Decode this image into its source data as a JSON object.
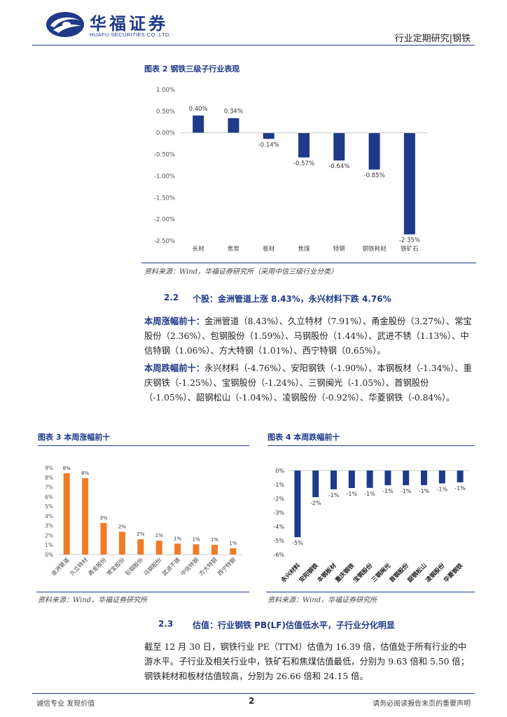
{
  "header": {
    "brand_cn": "华福证券",
    "brand_en": "HUAFU SECURITIES CO.,LTD.",
    "report_type": "行业定期研究|钢铁",
    "brand_color": "#1f3a8a"
  },
  "figure2": {
    "title": "图表 2 钢铁三级子行业表现",
    "source": "资料来源：Wind，华福证券研究所（采用中信三级行业分类）",
    "chart_data": {
      "type": "bar",
      "categories": [
        "长材",
        "焦炭",
        "板材",
        "焦煤",
        "特钢",
        "钢铁耗材",
        "铁矿石"
      ],
      "values": [
        0.4,
        0.34,
        -0.14,
        -0.57,
        -0.64,
        -0.85,
        -2.35
      ],
      "data_labels": [
        "0.40%",
        "0.34%",
        "-0.14%",
        "-0.57%",
        "-0.64%",
        "-0.85%",
        "-2.35%"
      ],
      "y_ticks": [
        "1.00%",
        "0.50%",
        "0.00%",
        "-0.50%",
        "-1.00%",
        "-1.50%",
        "-2.00%",
        "-2.50%"
      ],
      "ylim": [
        -2.5,
        1.0
      ],
      "bar_color": "#1f3a8a"
    }
  },
  "section22": {
    "number": "2.2",
    "title": "个股：金洲管道上涨 8.43%，永兴材料下跌 4.76%",
    "up_lead": "本周涨幅前十：",
    "up_text": "金洲管道（8.43%）、久立特材（7.91%）、甬金股份（3.27%）、常宝股份（2.36%）、包钢股份（1.59%）、马钢股份（1.44%）、武进不锈（1.13%）、中信特钢（1.06%）、方大特钢（1.01%）、西宁特钢（0.65%）。",
    "down_lead": "本周跌幅前十：",
    "down_text": "永兴材料（-4.76%）、安阳钢铁（-1.90%）、本钢板材（-1.34%）、重庆钢铁（-1.25%）、宝钢股份（-1.24%）、三钢闽光（-1.05%）、首钢股份（-1.05%）、韶钢松山（-1.04%）、凌钢股份（-0.92%）、华菱钢铁（-0.84%）。"
  },
  "figure3": {
    "title": "图表 3 本周涨幅前十",
    "source": "资料来源：Wind，华福证券研究所",
    "chart_data": {
      "type": "bar",
      "categories": [
        "金洲管道",
        "久立特材",
        "甬金股份",
        "常宝股份",
        "包钢股份",
        "马钢股份",
        "武进不锈",
        "中信特钢",
        "方大特钢",
        "西宁特钢"
      ],
      "values": [
        8.43,
        7.91,
        3.27,
        2.36,
        1.59,
        1.44,
        1.13,
        1.06,
        1.01,
        0.65
      ],
      "data_labels": [
        "8%",
        "8%",
        "3%",
        "2%",
        "2%",
        "1%",
        "1%",
        "1%",
        "1%",
        "1%"
      ],
      "y_ticks": [
        "9%",
        "8%",
        "7%",
        "6%",
        "5%",
        "4%",
        "3%",
        "2%",
        "1%",
        "0%"
      ],
      "ylim": [
        0,
        9
      ],
      "bar_color": "#f07c28"
    }
  },
  "figure4": {
    "title": "图表 4 本周跌幅前十",
    "source": "资料来源：Wind，华福证券研究所",
    "chart_data": {
      "type": "bar",
      "categories": [
        "永兴材料",
        "安阳钢铁",
        "本钢板材",
        "重庆钢铁",
        "宝钢股份",
        "三钢闽光",
        "首钢股份",
        "韶钢松山",
        "凌钢股份",
        "华菱钢铁"
      ],
      "values": [
        -4.76,
        -1.9,
        -1.34,
        -1.25,
        -1.24,
        -1.05,
        -1.05,
        -1.04,
        -0.92,
        -0.84
      ],
      "data_labels": [
        "-5%",
        "-2%",
        "-1%",
        "-1%",
        "-1%",
        "-1%",
        "-1%",
        "-1%",
        "-1%",
        "-1%"
      ],
      "y_ticks": [
        "0%",
        "-1%",
        "-2%",
        "-3%",
        "-4%",
        "-5%",
        "-6%"
      ],
      "ylim": [
        -6,
        0
      ],
      "bar_color": "#1f3a8a"
    }
  },
  "section23": {
    "number": "2.3",
    "title": "估值：行业钢铁 PB(LF)估值低水平，子行业分化明显",
    "text": "截至 12 月 30 日，钢铁行业 PE（TTM）估值为 16.39 倍，估值处于所有行业的中游水平。子行业及相关行业中，铁矿石和焦煤估值最低，分别为 9.63 倍和 5.50 倍；钢铁耗材和板材估值较高，分别为 26.66 倍和 24.15 倍。"
  },
  "footer": {
    "left": "诚信专业 发现价值",
    "page": "2",
    "right": "请务必阅读报告末页的重要声明"
  }
}
